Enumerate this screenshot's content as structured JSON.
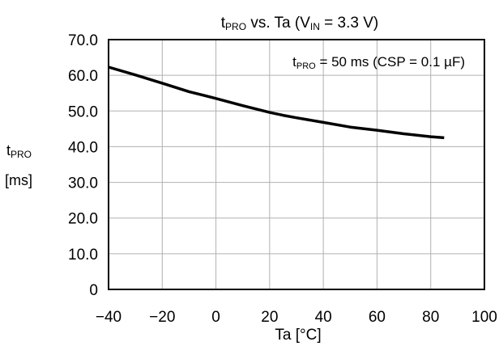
{
  "chart_data": {
    "type": "line",
    "title": {
      "main": "t",
      "sub": "PRO",
      "rest": " vs. Ta (V",
      "sub2": "IN",
      "end": " = 3.3 V)"
    },
    "annotation": {
      "main": "t",
      "sub": "PRO",
      "rest": " = 50 ms (CSP = 0.1 µF)"
    },
    "xlabel": "Ta [°C]",
    "ylabel": {
      "main": "t",
      "sub": "PRO",
      "unit": "[ms]"
    },
    "xlim": [
      -40,
      100
    ],
    "ylim": [
      0,
      70
    ],
    "x_ticks": [
      -40,
      -20,
      0,
      20,
      40,
      60,
      80,
      100
    ],
    "x_tick_labels": [
      "−40",
      "−20",
      "0",
      "20",
      "40",
      "60",
      "80",
      "100"
    ],
    "y_ticks": [
      0,
      10,
      20,
      30,
      40,
      50,
      60,
      70
    ],
    "y_tick_labels": [
      "0",
      "10.0",
      "20.0",
      "30.0",
      "40.0",
      "50.0",
      "60.0",
      "70.0"
    ],
    "grid": true,
    "series": [
      {
        "color": "#000000",
        "x": [
          -40,
          -30,
          -20,
          -10,
          0,
          10,
          20,
          25,
          30,
          40,
          50,
          60,
          70,
          80,
          85
        ],
        "y": [
          62.3,
          60.1,
          57.8,
          55.4,
          53.5,
          51.5,
          49.6,
          48.8,
          48.1,
          46.8,
          45.5,
          44.6,
          43.6,
          42.8,
          42.5
        ]
      }
    ]
  }
}
